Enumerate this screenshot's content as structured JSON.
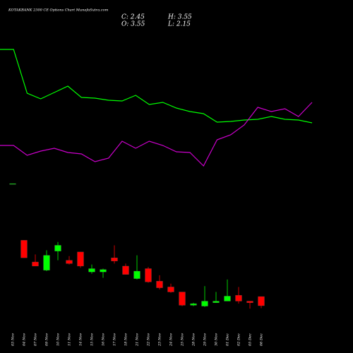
{
  "chart_data": [
    {
      "type": "candlestick",
      "title": "KOTAKBANK 2300 CE Options Chart MunafaSutra.com",
      "info": [
        "C: 2.45",
        "H: 3.55",
        "O: 3.55",
        "L: 2.15"
      ],
      "categories": [
        "03 Nov",
        "04 Nov",
        "07 Nov",
        "09 Nov",
        "10 Nov",
        "11 Nov",
        "14 Nov",
        "15 Nov",
        "16 Nov",
        "17 Nov",
        "18 Nov",
        "21 Nov",
        "22 Nov",
        "23 Nov",
        "24 Nov",
        "25 Nov",
        "28 Nov",
        "29 Nov",
        "30 Nov",
        "01 Dec",
        "02 Dec",
        "05 Dec",
        "06 Dec"
      ],
      "open": [
        17.1,
        10.3,
        7.7,
        6.7,
        9.0,
        7.9,
        8.9,
        6.5,
        6.5,
        8.2,
        7.2,
        5.7,
        6.9,
        5.4,
        4.7,
        4.1,
        2.5,
        2.4,
        2.8,
        3.0,
        3.7,
        3.0,
        3.55
      ],
      "high": [
        17.1,
        10.3,
        8.6,
        9.1,
        10.1,
        8.4,
        8.9,
        7.4,
        6.9,
        9.7,
        7.5,
        8.5,
        7.1,
        6.1,
        5.1,
        4.1,
        2.8,
        4.8,
        4.1,
        5.6,
        4.7,
        3.0,
        3.55
      ],
      "low": [
        17.1,
        8.2,
        7.2,
        6.6,
        7.9,
        7.4,
        7.0,
        6.3,
        5.8,
        7.5,
        6.2,
        5.6,
        5.2,
        4.4,
        4.0,
        2.4,
        2.4,
        2.3,
        2.8,
        3.0,
        2.7,
        2.1,
        2.15
      ],
      "close": [
        17.1,
        8.2,
        7.2,
        8.5,
        9.7,
        7.5,
        7.2,
        6.9,
        6.8,
        7.8,
        6.2,
        6.6,
        5.3,
        4.6,
        4.1,
        2.5,
        2.7,
        3.0,
        3.0,
        3.6,
        3.0,
        2.8,
        2.45
      ],
      "up_color": "#00ff00",
      "down_color": "#ff0000",
      "ylim": [
        1.9,
        17.1
      ]
    },
    {
      "type": "line",
      "ylim": [
        0,
        100
      ],
      "series": [
        {
          "color": "#00ff00",
          "values": [
            95,
            95,
            64,
            60,
            64.5,
            69,
            61,
            60.5,
            59,
            58.5,
            62.5,
            56,
            57.5,
            53.5,
            51,
            49.5,
            43.5,
            44,
            45,
            45.5,
            47.5,
            45.5,
            45,
            43
          ]
        },
        {
          "color": "#cc00cc",
          "values": [
            27,
            27,
            20,
            23,
            25,
            22,
            21,
            15.5,
            18,
            30,
            25,
            30,
            27,
            22.5,
            22,
            12.5,
            31,
            34.5,
            41.5,
            54,
            51,
            53,
            47.5,
            57.5
          ]
        }
      ]
    }
  ]
}
